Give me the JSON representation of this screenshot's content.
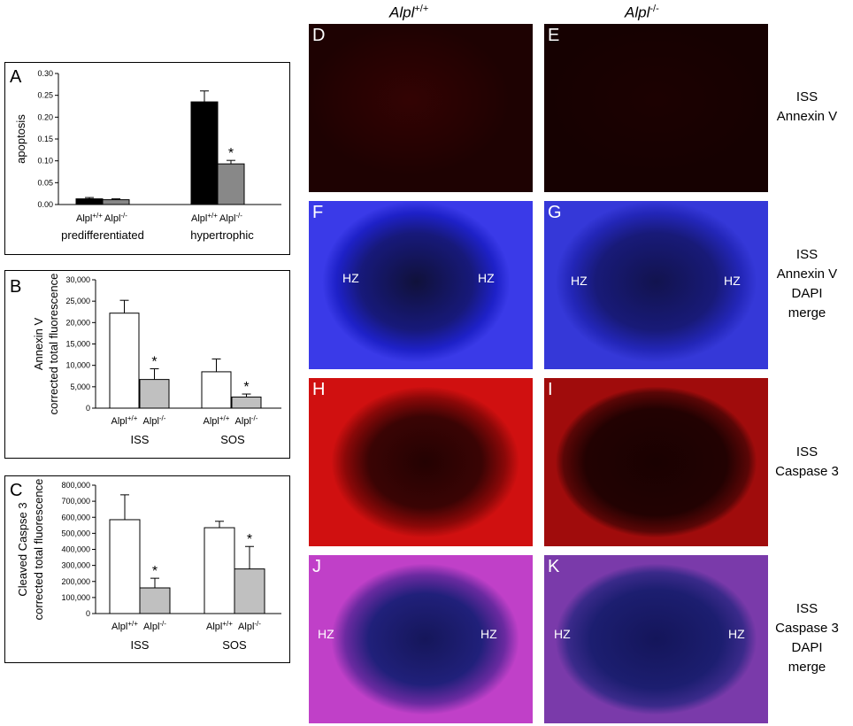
{
  "panels_chart": [
    {
      "id": "A",
      "ylabel": "apoptosis",
      "ylim": [
        0,
        0.3
      ],
      "yticks": [
        "0.00",
        "0.05",
        "0.10",
        "0.15",
        "0.20",
        "0.25",
        "0.30"
      ],
      "groups": [
        {
          "name": "predifferentiated",
          "bars": [
            {
              "label": "Alpl",
              "sup": "+/+",
              "value": 0.013,
              "err": 0.003,
              "color": "#000000",
              "star": false
            },
            {
              "label": "Alpl",
              "sup": "-/-",
              "value": 0.011,
              "err": 0.002,
              "color": "#888888",
              "star": false
            }
          ]
        },
        {
          "name": "hypertrophic",
          "bars": [
            {
              "label": "Alpl",
              "sup": "+/+",
              "value": 0.235,
              "err": 0.025,
              "color": "#000000",
              "star": false
            },
            {
              "label": "Alpl",
              "sup": "-/-",
              "value": 0.093,
              "err": 0.008,
              "color": "#888888",
              "star": true
            }
          ]
        }
      ]
    },
    {
      "id": "B",
      "ylabel": [
        "Annexin V",
        "corrected total fluorescence"
      ],
      "ylim": [
        0,
        30000
      ],
      "yticks": [
        "0",
        "5,000",
        "10,000",
        "15,000",
        "20,000",
        "25,000",
        "30,000"
      ],
      "groups": [
        {
          "name": "ISS",
          "bars": [
            {
              "label": "Alpl",
              "sup": "+/+",
              "value": 22200,
              "err": 3000,
              "color": "#ffffff",
              "star": false
            },
            {
              "label": "Alpl",
              "sup": "-/-",
              "value": 6700,
              "err": 2500,
              "color": "#c0c0c0",
              "star": true
            }
          ]
        },
        {
          "name": "SOS",
          "bars": [
            {
              "label": "Alpl",
              "sup": "+/+",
              "value": 8500,
              "err": 3000,
              "color": "#ffffff",
              "star": false
            },
            {
              "label": "Alpl",
              "sup": "-/-",
              "value": 2600,
              "err": 700,
              "color": "#c0c0c0",
              "star": true
            }
          ]
        }
      ]
    },
    {
      "id": "C",
      "ylabel": [
        "Cleaved Caspse 3",
        "corrected total fluorescence"
      ],
      "ylim": [
        0,
        800000
      ],
      "yticks": [
        "0",
        "100,000",
        "200,000",
        "300,000",
        "400,000",
        "500,000",
        "600,000",
        "700,000",
        "800,000"
      ],
      "groups": [
        {
          "name": "ISS",
          "bars": [
            {
              "label": "Alpl",
              "sup": "+/+",
              "value": 585000,
              "err": 155000,
              "color": "#ffffff",
              "star": false
            },
            {
              "label": "Alpl",
              "sup": "-/-",
              "value": 160000,
              "err": 60000,
              "color": "#c0c0c0",
              "star": true
            }
          ]
        },
        {
          "name": "SOS",
          "bars": [
            {
              "label": "Alpl",
              "sup": "+/+",
              "value": 535000,
              "err": 40000,
              "color": "#ffffff",
              "star": false
            },
            {
              "label": "Alpl",
              "sup": "-/-",
              "value": 278000,
              "err": 140000,
              "color": "#c0c0c0",
              "star": true
            }
          ]
        }
      ]
    }
  ],
  "columns": {
    "wt": {
      "name": "Alpl",
      "sup": "+/+"
    },
    "ko": {
      "name": "Alpl",
      "sup": "-/-"
    }
  },
  "micrographs": {
    "D": "D",
    "E": "E",
    "F": "F",
    "G": "G",
    "H": "H",
    "I": "I",
    "J": "J",
    "K": "K",
    "hz": "HZ"
  },
  "row_labels": {
    "annexin": [
      "ISS",
      "Annexin V"
    ],
    "annexin_dapi": [
      "ISS",
      "Annexin V",
      "DAPI",
      "merge"
    ],
    "caspase": [
      "ISS",
      "Caspase 3"
    ],
    "caspase_dapi": [
      "ISS",
      "Caspase 3",
      "DAPI",
      "merge"
    ]
  },
  "star_symbol": "*"
}
